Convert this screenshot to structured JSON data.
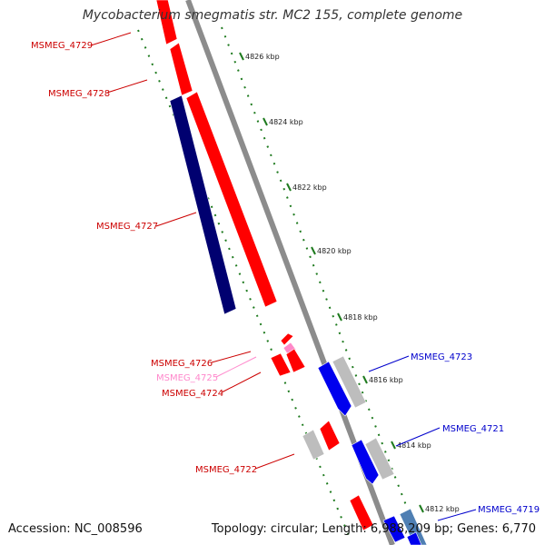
{
  "title": "Mycobacterium smegmatis str. MC2 155, complete genome",
  "accession": "Accession: NC_008596",
  "summary": "Topology: circular; Length: 6,988,209 bp; Genes: 6,770",
  "colors": {
    "backbone": "#8c8c8c",
    "tick": "#1e7a1e",
    "forward": "#ff0000",
    "reverse": "#0000ee",
    "dark_cds": "#000070",
    "gray_cds": "#bdbdbd",
    "pink_gene": "#ff88c8",
    "steel_cds": "#4f7fb3",
    "label_forward": "#cc0000",
    "label_reverse": "#0000cc",
    "label_pink": "#ff88cc"
  },
  "kbp_labels": [
    "4826 kbp",
    "4824 kbp",
    "4822 kbp",
    "4820 kbp",
    "4818 kbp",
    "4816 kbp",
    "4814 kbp",
    "4812 kbp"
  ],
  "gene_labels": {
    "m4729": "MSMEG_4729",
    "m4728": "MSMEG_4728",
    "m4727": "MSMEG_4727",
    "m4726": "MSMEG_4726",
    "m4725": "MSMEG_4725",
    "m4724": "MSMEG_4724",
    "m4723": "MSMEG_4723",
    "m4722": "MSMEG_4722",
    "m4721": "MSMEG_4721",
    "m4719": "MSMEG_4719"
  }
}
